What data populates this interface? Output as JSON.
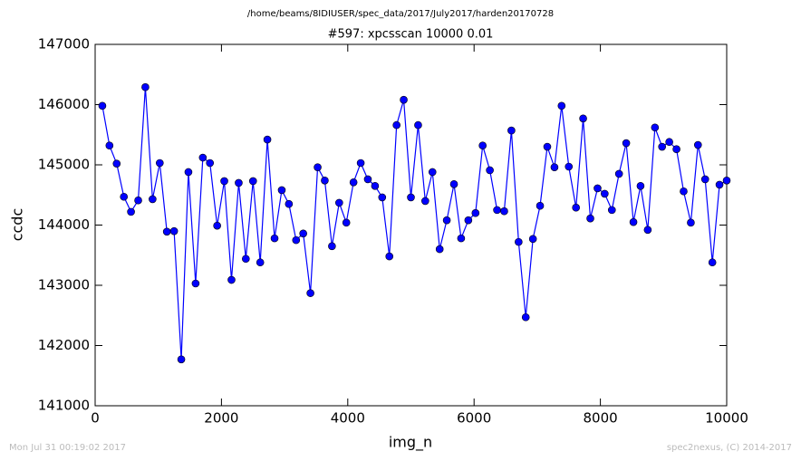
{
  "chart_data": {
    "type": "line",
    "suptitle": "/home/beams/8IDIUSER/spec_data/2017/July2017/harden20170728",
    "title": "#597: xpcsscan 10000 0.01",
    "x_label": "img_n",
    "y_label": "ccdc",
    "footer_left": "Mon Jul 31 00:19:02 2017",
    "footer_right": "spec2nexus, (C) 2014-2017",
    "x": [
      114,
      227,
      341,
      455,
      568,
      682,
      795,
      909,
      1023,
      1136,
      1250,
      1364,
      1477,
      1591,
      1705,
      1818,
      1932,
      2045,
      2159,
      2273,
      2386,
      2500,
      2614,
      2727,
      2841,
      2955,
      3068,
      3182,
      3295,
      3409,
      3523,
      3636,
      3750,
      3864,
      3977,
      4091,
      4205,
      4318,
      4432,
      4545,
      4659,
      4773,
      4886,
      5000,
      5114,
      5227,
      5341,
      5455,
      5568,
      5682,
      5795,
      5909,
      6023,
      6136,
      6250,
      6364,
      6477,
      6591,
      6705,
      6818,
      6932,
      7045,
      7159,
      7273,
      7386,
      7500,
      7614,
      7727,
      7841,
      7955,
      8068,
      8182,
      8295,
      8409,
      8523,
      8636,
      8750,
      8864,
      8977,
      9091,
      9205,
      9318,
      9432,
      9545,
      9659,
      9773,
      9886,
      10000
    ],
    "series": [
      {
        "name": "ccdc",
        "color": "#0000ff",
        "values": [
          145980,
          145320,
          145020,
          144470,
          144220,
          144410,
          146290,
          144430,
          145030,
          143890,
          143900,
          141770,
          144880,
          143030,
          145120,
          145030,
          143990,
          144730,
          143090,
          144700,
          143440,
          144730,
          143380,
          145420,
          143780,
          144580,
          144350,
          143750,
          143860,
          142870,
          144960,
          144740,
          143650,
          144370,
          144040,
          144710,
          145030,
          144760,
          144650,
          144460,
          143480,
          145660,
          146080,
          144460,
          145660,
          144400,
          144880,
          143600,
          144080,
          144680,
          143780,
          144080,
          144200,
          145320,
          144910,
          144250,
          144230,
          145570,
          143720,
          142470,
          143770,
          144320,
          145300,
          144960,
          145980,
          144970,
          144290,
          145770,
          144110,
          144610,
          144520,
          144250,
          144850,
          145360,
          144050,
          144650,
          143920,
          145620,
          145300,
          145380,
          145260,
          144560,
          144040,
          145330,
          144760,
          143380,
          144670,
          144740
        ]
      }
    ],
    "xlim": [
      0,
      10000
    ],
    "xticks": [
      0,
      2000,
      4000,
      6000,
      8000,
      10000
    ],
    "ylim": [
      141000,
      147000
    ],
    "yticks": [
      141000,
      142000,
      143000,
      144000,
      145000,
      146000,
      147000
    ]
  }
}
